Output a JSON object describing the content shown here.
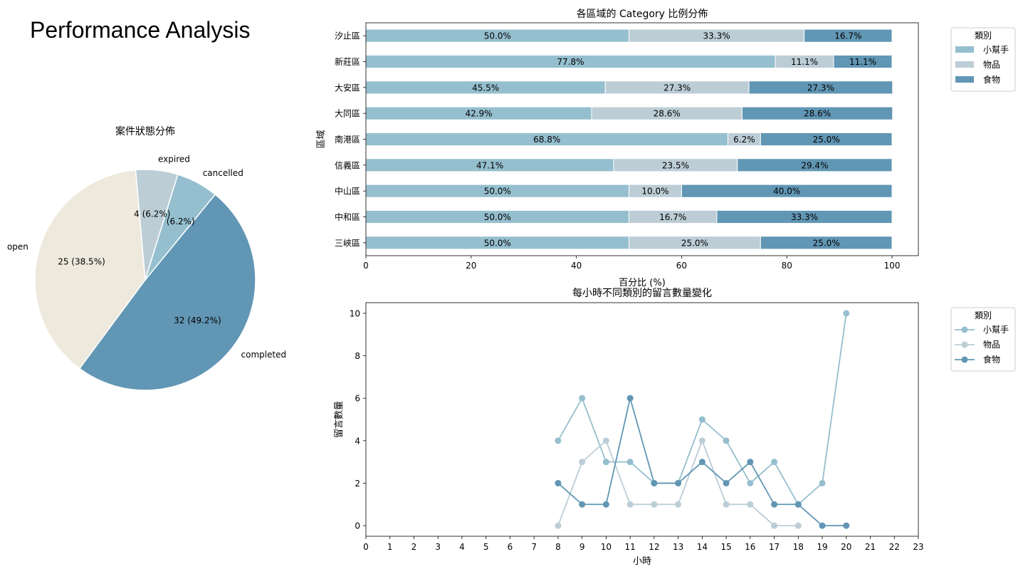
{
  "page": {
    "title": "Performance Analysis"
  },
  "chart_data": [
    {
      "type": "pie",
      "title": "案件狀態分佈",
      "slices": [
        {
          "label": "open",
          "value": 25,
          "display": "25 (38.5%)",
          "color": "#ede9dc"
        },
        {
          "label": "completed",
          "value": 32,
          "display": "32 (49.2%)",
          "color": "#6196b4"
        },
        {
          "label": "cancelled",
          "value": 4,
          "display": "4 (6.2%)",
          "color": "#95bfce"
        },
        {
          "label": "expired",
          "value": 4,
          "display": "4 (6.2%)",
          "color": "#bccdd6"
        }
      ]
    },
    {
      "type": "bar",
      "orientation": "horizontal",
      "stacked": true,
      "title": "各區域的 Category 比例分佈",
      "xlabel": "百分比 (%)",
      "ylabel": "區域",
      "xlim": [
        0,
        105
      ],
      "xticks": [
        0,
        20,
        40,
        60,
        80,
        100
      ],
      "categories": [
        "汐止區",
        "新莊區",
        "大安區",
        "大同區",
        "南港區",
        "信義區",
        "中山區",
        "中和區",
        "三峽區"
      ],
      "legend": {
        "title": "類別",
        "position": "outside-top-right"
      },
      "series": [
        {
          "name": "小幫手",
          "color": "#95bfce",
          "values": [
            50.0,
            77.8,
            45.5,
            42.9,
            68.8,
            47.1,
            50.0,
            50.0,
            50.0
          ]
        },
        {
          "name": "物品",
          "color": "#bccdd6",
          "values": [
            33.3,
            11.1,
            27.3,
            28.6,
            6.2,
            23.5,
            10.0,
            16.7,
            25.0
          ]
        },
        {
          "name": "食物",
          "color": "#6196b4",
          "values": [
            16.7,
            11.1,
            27.3,
            28.6,
            25.0,
            29.4,
            40.0,
            33.3,
            25.0
          ]
        }
      ]
    },
    {
      "type": "line",
      "title": "每小時不同類別的留言數量變化",
      "xlabel": "小時",
      "ylabel": "留言數量",
      "xlim": [
        0,
        23
      ],
      "ylim": [
        -0.5,
        10.5
      ],
      "xticks": [
        0,
        1,
        2,
        3,
        4,
        5,
        6,
        7,
        8,
        9,
        10,
        11,
        12,
        13,
        14,
        15,
        16,
        17,
        18,
        19,
        20,
        21,
        22,
        23
      ],
      "yticks": [
        0,
        2,
        4,
        6,
        8,
        10
      ],
      "legend": {
        "title": "類別",
        "position": "outside-top-right"
      },
      "x": [
        8,
        9,
        10,
        11,
        12,
        13,
        14,
        15,
        16,
        17,
        18,
        19,
        20
      ],
      "series": [
        {
          "name": "小幫手",
          "color": "#95bfce",
          "values": [
            4,
            6,
            3,
            3,
            2,
            2,
            5,
            4,
            2,
            3,
            1,
            2,
            10
          ]
        },
        {
          "name": "物品",
          "color": "#bccdd6",
          "values": [
            0,
            3,
            4,
            1,
            1,
            1,
            4,
            1,
            1,
            0,
            0,
            null,
            null
          ]
        },
        {
          "name": "食物",
          "color": "#6196b4",
          "values": [
            2,
            1,
            1,
            6,
            2,
            2,
            3,
            2,
            3,
            1,
            1,
            0,
            0
          ]
        }
      ]
    }
  ]
}
